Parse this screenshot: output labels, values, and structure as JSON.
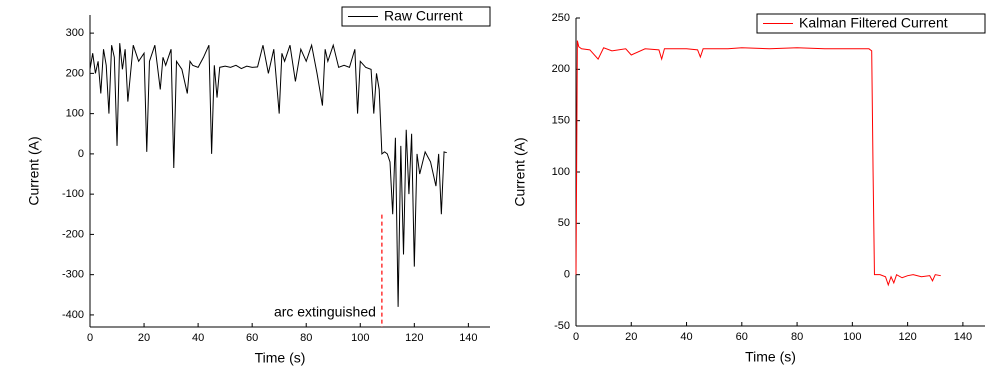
{
  "chart_data": [
    {
      "type": "line",
      "xlabel": "Time (s)",
      "ylabel": "Current (A)",
      "xlim": [
        0,
        148
      ],
      "ylim": [
        -430,
        345
      ],
      "xticks": [
        0,
        20,
        40,
        60,
        80,
        100,
        120,
        140
      ],
      "yticks": [
        300,
        200,
        100,
        0,
        -100,
        -200,
        -300,
        -400
      ],
      "legend": "upper right",
      "annotations": [
        {
          "text": "arc extinguished",
          "x": 108
        }
      ],
      "annotation_color": "#ff0000",
      "series": [
        {
          "name": "Raw Current",
          "color": "#000000",
          "x": [
            0,
            1,
            2,
            3,
            4,
            5,
            6,
            7,
            8,
            9,
            10,
            11,
            12,
            13,
            14,
            16,
            18,
            20,
            21,
            22,
            24,
            26,
            27,
            28,
            30,
            31,
            32,
            34,
            36,
            37,
            38,
            40,
            42,
            44,
            45,
            46,
            47,
            48,
            50,
            52,
            54,
            56,
            58,
            60,
            62,
            64,
            66,
            68,
            70,
            71,
            72,
            74,
            76,
            78,
            80,
            82,
            84,
            86,
            87,
            88,
            90,
            92,
            94,
            96,
            98,
            99,
            100,
            102,
            104,
            105,
            106,
            107,
            108,
            109,
            110,
            111,
            112,
            113,
            114,
            115,
            116,
            117,
            118,
            119,
            120,
            121,
            122,
            124,
            126,
            128,
            129,
            130,
            131,
            132
          ],
          "values": [
            210,
            250,
            200,
            230,
            150,
            260,
            220,
            100,
            270,
            240,
            20,
            275,
            210,
            260,
            130,
            270,
            230,
            250,
            5,
            230,
            270,
            160,
            240,
            220,
            260,
            -35,
            230,
            210,
            150,
            230,
            220,
            215,
            240,
            270,
            0,
            220,
            140,
            215,
            218,
            215,
            220,
            212,
            218,
            215,
            216,
            270,
            200,
            260,
            100,
            250,
            230,
            270,
            180,
            260,
            230,
            270,
            200,
            120,
            260,
            230,
            270,
            215,
            220,
            215,
            260,
            100,
            230,
            215,
            210,
            100,
            200,
            160,
            0,
            5,
            0,
            -20,
            -150,
            40,
            -380,
            20,
            -250,
            60,
            -100,
            50,
            -280,
            0,
            -50,
            5,
            -20,
            -80,
            0,
            -150,
            5,
            3
          ]
        }
      ]
    },
    {
      "type": "line",
      "xlabel": "Time (s)",
      "ylabel": "Current (A)",
      "xlim": [
        0,
        148
      ],
      "ylim": [
        -50,
        250
      ],
      "xticks": [
        0,
        20,
        40,
        60,
        80,
        100,
        120,
        140
      ],
      "yticks": [
        250,
        200,
        150,
        100,
        50,
        0,
        -50
      ],
      "legend": "upper right",
      "series": [
        {
          "name": "Kalman Filtered Current",
          "color": "#ff0000",
          "x": [
            0,
            0.5,
            1,
            2,
            5,
            8,
            10,
            13,
            18,
            20,
            25,
            30,
            31,
            32,
            40,
            44,
            45,
            46,
            55,
            60,
            70,
            80,
            90,
            100,
            106,
            107,
            107.5,
            108,
            110,
            112,
            113,
            114,
            115,
            116,
            118,
            120,
            122,
            125,
            128,
            129,
            130,
            132
          ],
          "values": [
            0,
            228,
            222,
            220,
            219,
            210,
            221,
            218,
            220,
            214,
            220,
            219,
            210,
            220,
            220,
            219,
            212,
            220,
            220,
            221,
            220,
            221,
            220,
            220,
            220,
            218,
            100,
            0,
            0,
            -2,
            -10,
            -2,
            -8,
            0,
            -3,
            -1,
            0,
            -2,
            -1,
            -6,
            0,
            -1
          ]
        }
      ]
    }
  ]
}
